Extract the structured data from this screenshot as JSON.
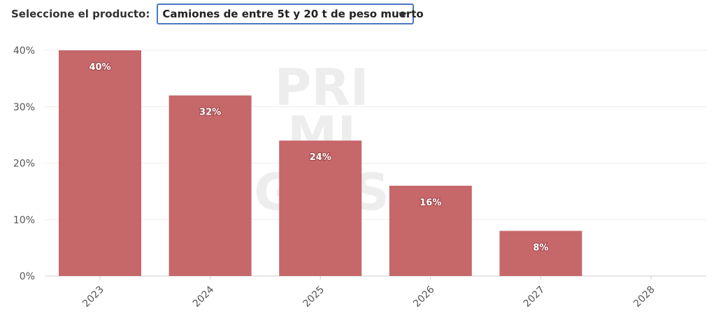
{
  "selector": {
    "label": "Seleccione el producto:",
    "value": "Camiones de entre 5t y 20 t de peso muerto"
  },
  "watermark": [
    "PRI",
    "MI",
    "GIAS"
  ],
  "colors": {
    "bar": "#c6676a",
    "grid": "#eeeeee",
    "axis": "#cccccc"
  },
  "chart_data": {
    "type": "bar",
    "categories": [
      "2023",
      "2024",
      "2025",
      "2026",
      "2027",
      "2028"
    ],
    "values": [
      40,
      32,
      24,
      16,
      8,
      0
    ],
    "data_labels": [
      "40%",
      "32%",
      "24%",
      "16%",
      "8%",
      ""
    ],
    "yticks": [
      0,
      10,
      20,
      30,
      40
    ],
    "ytick_labels": [
      "0%",
      "10%",
      "20%",
      "30%",
      "40%"
    ],
    "ylim": [
      0,
      40
    ],
    "grid": true,
    "title": "",
    "xlabel": "",
    "ylabel": ""
  }
}
